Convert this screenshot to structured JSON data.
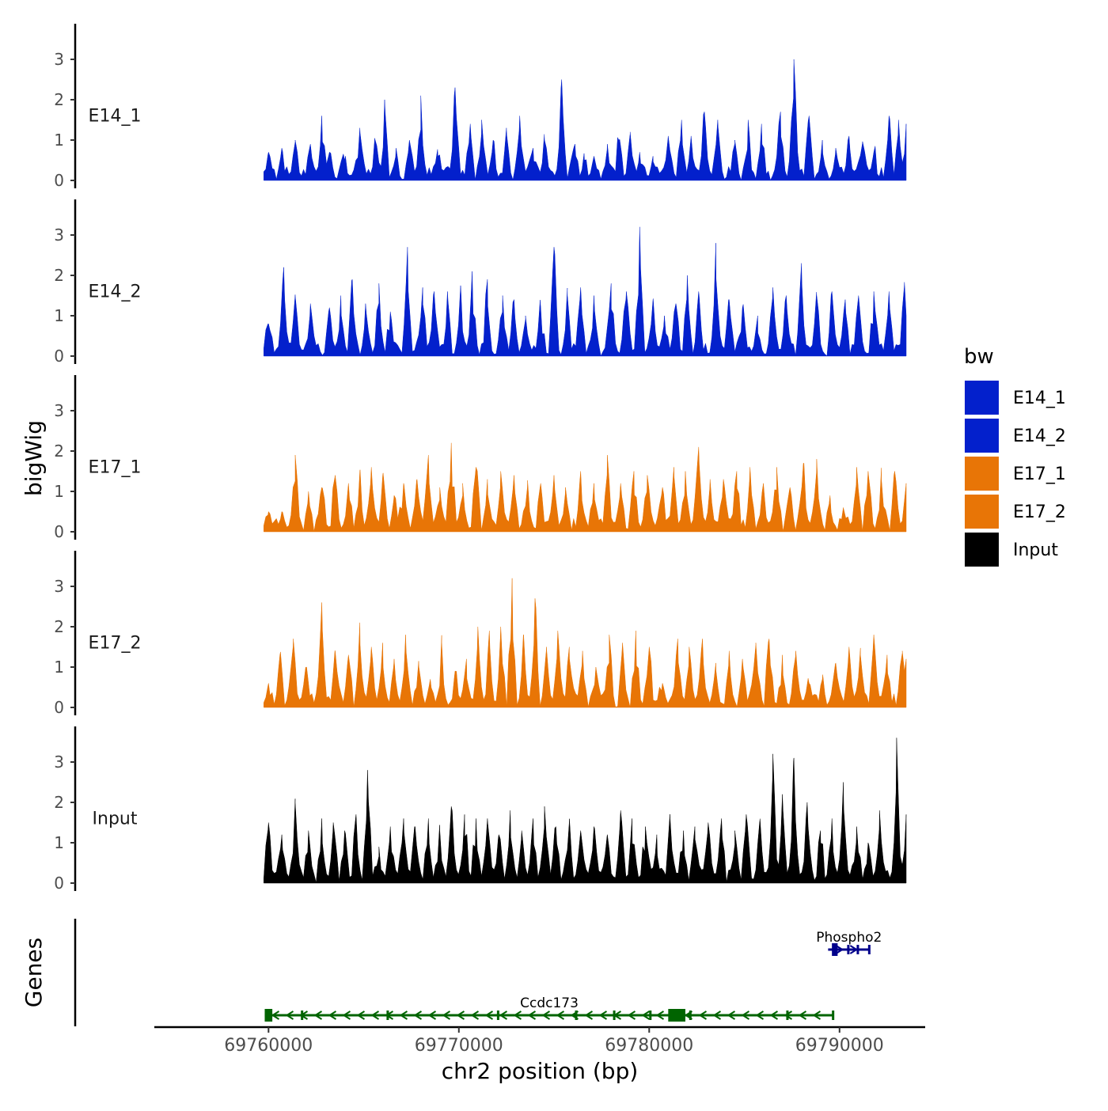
{
  "chart_data": {
    "type": "area",
    "ylabel": "bigWig",
    "xlabel": "chr2 position (bp)",
    "genes_label": "Genes",
    "xlim": [
      69754000,
      69794500
    ],
    "ylim": [
      0,
      3.8
    ],
    "y_ticks": [
      "0",
      "1",
      "2",
      "3"
    ],
    "x_ticks": [
      {
        "value": 69760000,
        "label": "69760000"
      },
      {
        "value": 69770000,
        "label": "69770000"
      },
      {
        "value": 69780000,
        "label": "69780000"
      },
      {
        "value": 69790000,
        "label": "69790000"
      }
    ],
    "legend": {
      "title": "bw",
      "position": "right",
      "items": [
        {
          "label": "E14_1",
          "color": "#0320CC"
        },
        {
          "label": "E14_2",
          "color": "#0320CC"
        },
        {
          "label": "E17_1",
          "color": "#E87506"
        },
        {
          "label": "E17_2",
          "color": "#E87506"
        },
        {
          "label": "Input",
          "color": "#000000"
        }
      ]
    },
    "series": [
      {
        "name": "E14_1",
        "color": "#0320CC",
        "start": 69759750,
        "end": 69793500,
        "peaks": [
          [
            69760000,
            0.7
          ],
          [
            69760700,
            0.8
          ],
          [
            69761400,
            1.0
          ],
          [
            69762200,
            0.9
          ],
          [
            69762800,
            1.6
          ],
          [
            69763200,
            0.7
          ],
          [
            69764000,
            0.5
          ],
          [
            69764800,
            1.3
          ],
          [
            69765600,
            1.0
          ],
          [
            69766100,
            2.0
          ],
          [
            69766700,
            0.8
          ],
          [
            69767400,
            1.0
          ],
          [
            69768000,
            2.1
          ],
          [
            69768900,
            0.6
          ],
          [
            69769800,
            2.3
          ],
          [
            69770600,
            1.4
          ],
          [
            69771200,
            1.5
          ],
          [
            69771800,
            1.0
          ],
          [
            69772500,
            1.3
          ],
          [
            69773200,
            1.6
          ],
          [
            69773900,
            0.8
          ],
          [
            69774500,
            1.0
          ],
          [
            69775400,
            2.5
          ],
          [
            69776100,
            0.9
          ],
          [
            69776600,
            0.5
          ],
          [
            69777100,
            0.6
          ],
          [
            69777800,
            0.9
          ],
          [
            69778400,
            1.0
          ],
          [
            69779000,
            1.2
          ],
          [
            69779500,
            0.7
          ],
          [
            69780200,
            0.6
          ],
          [
            69781000,
            1.1
          ],
          [
            69781700,
            1.5
          ],
          [
            69782200,
            1.1
          ],
          [
            69782900,
            1.7
          ],
          [
            69783600,
            1.5
          ],
          [
            69784500,
            1.0
          ],
          [
            69785200,
            1.5
          ],
          [
            69785900,
            1.4
          ],
          [
            69786900,
            1.7
          ],
          [
            69787600,
            3.0
          ],
          [
            69788400,
            1.6
          ],
          [
            69789100,
            1.0
          ],
          [
            69789800,
            0.8
          ],
          [
            69790500,
            1.1
          ],
          [
            69791200,
            0.9
          ],
          [
            69791800,
            0.7
          ],
          [
            69792600,
            1.6
          ],
          [
            69793100,
            1.5
          ],
          [
            69793500,
            1.4
          ]
        ]
      },
      {
        "name": "E14_2",
        "color": "#0320CC",
        "start": 69759750,
        "end": 69793500,
        "peaks": [
          [
            69760000,
            0.8
          ],
          [
            69760800,
            2.2
          ],
          [
            69761400,
            1.5
          ],
          [
            69762200,
            1.3
          ],
          [
            69763200,
            1.2
          ],
          [
            69763800,
            1.5
          ],
          [
            69764400,
            1.9
          ],
          [
            69765100,
            1.3
          ],
          [
            69765800,
            1.8
          ],
          [
            69766400,
            1.1
          ],
          [
            69767300,
            2.7
          ],
          [
            69768100,
            1.7
          ],
          [
            69768700,
            1.6
          ],
          [
            69769400,
            1.6
          ],
          [
            69770100,
            1.7
          ],
          [
            69770700,
            2.1
          ],
          [
            69771500,
            1.9
          ],
          [
            69772300,
            1.5
          ],
          [
            69772900,
            1.4
          ],
          [
            69773500,
            1.0
          ],
          [
            69774300,
            1.2
          ],
          [
            69775000,
            2.7
          ],
          [
            69775700,
            1.5
          ],
          [
            69776400,
            1.7
          ],
          [
            69777100,
            1.5
          ],
          [
            69778000,
            1.8
          ],
          [
            69778800,
            1.6
          ],
          [
            69779500,
            3.2
          ],
          [
            69780200,
            1.4
          ],
          [
            69780800,
            1.0
          ],
          [
            69781400,
            1.3
          ],
          [
            69782000,
            2.0
          ],
          [
            69782600,
            1.6
          ],
          [
            69783500,
            2.8
          ],
          [
            69784200,
            1.4
          ],
          [
            69784900,
            1.2
          ],
          [
            69785700,
            1.0
          ],
          [
            69786500,
            1.7
          ],
          [
            69787200,
            1.5
          ],
          [
            69788000,
            2.3
          ],
          [
            69788800,
            1.5
          ],
          [
            69789600,
            1.6
          ],
          [
            69790300,
            1.4
          ],
          [
            69791000,
            1.5
          ],
          [
            69791800,
            1.6
          ],
          [
            69792600,
            1.6
          ],
          [
            69793400,
            1.7
          ],
          [
            69793500,
            1.0
          ]
        ]
      },
      {
        "name": "E17_1",
        "color": "#E87506",
        "start": 69759750,
        "end": 69793500,
        "peaks": [
          [
            69760000,
            0.5
          ],
          [
            69760700,
            0.5
          ],
          [
            69761400,
            1.9
          ],
          [
            69762100,
            1.0
          ],
          [
            69762800,
            1.1
          ],
          [
            69763500,
            1.4
          ],
          [
            69764200,
            1.2
          ],
          [
            69764800,
            1.5
          ],
          [
            69765400,
            1.6
          ],
          [
            69766000,
            1.4
          ],
          [
            69766600,
            0.9
          ],
          [
            69767100,
            1.2
          ],
          [
            69767800,
            1.3
          ],
          [
            69768400,
            1.9
          ],
          [
            69769000,
            1.1
          ],
          [
            69769600,
            2.2
          ],
          [
            69770200,
            1.2
          ],
          [
            69770900,
            1.6
          ],
          [
            69771500,
            1.3
          ],
          [
            69772200,
            1.5
          ],
          [
            69772900,
            1.4
          ],
          [
            69773600,
            1.1
          ],
          [
            69774300,
            1.2
          ],
          [
            69775000,
            1.4
          ],
          [
            69775600,
            1.1
          ],
          [
            69776400,
            1.5
          ],
          [
            69777100,
            1.2
          ],
          [
            69777800,
            1.9
          ],
          [
            69778500,
            1.2
          ],
          [
            69779200,
            1.5
          ],
          [
            69779900,
            1.4
          ],
          [
            69780700,
            1.1
          ],
          [
            69781300,
            1.6
          ],
          [
            69781900,
            1.5
          ],
          [
            69782600,
            2.1
          ],
          [
            69783200,
            1.3
          ],
          [
            69783900,
            1.3
          ],
          [
            69784600,
            1.5
          ],
          [
            69785300,
            1.6
          ],
          [
            69786000,
            1.2
          ],
          [
            69786700,
            1.6
          ],
          [
            69787400,
            1.1
          ],
          [
            69788100,
            1.7
          ],
          [
            69788800,
            1.8
          ],
          [
            69789500,
            0.9
          ],
          [
            69790200,
            0.6
          ],
          [
            69790900,
            1.6
          ],
          [
            69791500,
            1.5
          ],
          [
            69792200,
            1.3
          ],
          [
            69792900,
            1.5
          ],
          [
            69793500,
            1.2
          ]
        ]
      },
      {
        "name": "E17_2",
        "color": "#E87506",
        "start": 69759750,
        "end": 69793500,
        "peaks": [
          [
            69760000,
            0.6
          ],
          [
            69760600,
            1.3
          ],
          [
            69761300,
            1.7
          ],
          [
            69762000,
            1.0
          ],
          [
            69762800,
            2.6
          ],
          [
            69763500,
            1.4
          ],
          [
            69764200,
            1.3
          ],
          [
            69764800,
            2.1
          ],
          [
            69765400,
            1.5
          ],
          [
            69766000,
            1.6
          ],
          [
            69766600,
            1.2
          ],
          [
            69767200,
            1.8
          ],
          [
            69767900,
            1.0
          ],
          [
            69768500,
            0.7
          ],
          [
            69769100,
            1.6
          ],
          [
            69769800,
            0.9
          ],
          [
            69770400,
            1.2
          ],
          [
            69771000,
            2.0
          ],
          [
            69771600,
            1.9
          ],
          [
            69772200,
            2.0
          ],
          [
            69772800,
            3.2
          ],
          [
            69773400,
            1.8
          ],
          [
            69774000,
            2.7
          ],
          [
            69774600,
            1.5
          ],
          [
            69775200,
            1.9
          ],
          [
            69775800,
            1.5
          ],
          [
            69776500,
            1.4
          ],
          [
            69777200,
            1.0
          ],
          [
            69777900,
            1.8
          ],
          [
            69778600,
            1.6
          ],
          [
            69779300,
            1.9
          ],
          [
            69780000,
            1.5
          ],
          [
            69780700,
            0.6
          ],
          [
            69781500,
            1.7
          ],
          [
            69782100,
            1.5
          ],
          [
            69782800,
            1.7
          ],
          [
            69783500,
            1.1
          ],
          [
            69784200,
            1.4
          ],
          [
            69784900,
            1.2
          ],
          [
            69785600,
            1.6
          ],
          [
            69786300,
            1.7
          ],
          [
            69787000,
            1.3
          ],
          [
            69787700,
            1.4
          ],
          [
            69788400,
            0.6
          ],
          [
            69789100,
            0.7
          ],
          [
            69789800,
            1.1
          ],
          [
            69790500,
            1.5
          ],
          [
            69791100,
            1.3
          ],
          [
            69791800,
            1.8
          ],
          [
            69792500,
            1.3
          ],
          [
            69793300,
            1.4
          ],
          [
            69793500,
            1.2
          ]
        ]
      },
      {
        "name": "Input",
        "color": "#000000",
        "start": 69759750,
        "end": 69793500,
        "peaks": [
          [
            69760000,
            1.5
          ],
          [
            69760700,
            1.2
          ],
          [
            69761400,
            2.0
          ],
          [
            69762100,
            1.3
          ],
          [
            69762800,
            1.6
          ],
          [
            69763400,
            1.5
          ],
          [
            69764000,
            1.3
          ],
          [
            69764600,
            1.7
          ],
          [
            69765200,
            2.8
          ],
          [
            69765800,
            0.9
          ],
          [
            69766400,
            1.4
          ],
          [
            69767100,
            1.6
          ],
          [
            69767700,
            1.4
          ],
          [
            69768400,
            1.6
          ],
          [
            69769000,
            1.3
          ],
          [
            69769600,
            1.9
          ],
          [
            69770300,
            1.7
          ],
          [
            69770900,
            1.6
          ],
          [
            69771500,
            1.6
          ],
          [
            69772100,
            1.2
          ],
          [
            69772700,
            1.8
          ],
          [
            69773300,
            1.3
          ],
          [
            69773900,
            1.6
          ],
          [
            69774500,
            1.9
          ],
          [
            69775100,
            1.4
          ],
          [
            69775800,
            1.5
          ],
          [
            69776400,
            1.3
          ],
          [
            69777100,
            1.4
          ],
          [
            69777800,
            1.2
          ],
          [
            69778500,
            1.8
          ],
          [
            69779100,
            1.6
          ],
          [
            69779800,
            1.4
          ],
          [
            69780400,
            1.2
          ],
          [
            69781100,
            1.6
          ],
          [
            69781800,
            1.3
          ],
          [
            69782400,
            1.4
          ],
          [
            69783100,
            1.5
          ],
          [
            69783800,
            1.6
          ],
          [
            69784500,
            1.3
          ],
          [
            69785100,
            1.7
          ],
          [
            69785800,
            1.5
          ],
          [
            69786500,
            3.2
          ],
          [
            69787000,
            2.2
          ],
          [
            69787600,
            3.1
          ],
          [
            69788300,
            2.0
          ],
          [
            69789000,
            1.3
          ],
          [
            69789600,
            1.6
          ],
          [
            69790200,
            2.5
          ],
          [
            69790900,
            1.4
          ],
          [
            69791500,
            1.0
          ],
          [
            69792100,
            1.8
          ],
          [
            69793000,
            3.6
          ],
          [
            69793500,
            1.7
          ]
        ]
      }
    ],
    "genes": [
      {
        "name": "Ccdc173",
        "color": "#006400",
        "strand": "-",
        "start": 69759800,
        "end": 69789700,
        "exons": [
          [
            69759800,
            69760200
          ],
          [
            69761700,
            69761800
          ],
          [
            69766200,
            69766300
          ],
          [
            69772000,
            69772100
          ],
          [
            69776100,
            69776200
          ],
          [
            69778100,
            69778200
          ],
          [
            69780000,
            69780100
          ],
          [
            69781000,
            69781900
          ],
          [
            69782100,
            69782200
          ],
          [
            69787200,
            69787300
          ],
          [
            69789600,
            69789700
          ]
        ]
      },
      {
        "name": "Phospho2",
        "color": "#00008B",
        "strand": "+",
        "start": 69789400,
        "end": 69791600,
        "exons": [
          [
            69789600,
            69789900
          ],
          [
            69790400,
            69790500
          ],
          [
            69790900,
            69791000
          ],
          [
            69791500,
            69791600
          ]
        ]
      }
    ]
  }
}
